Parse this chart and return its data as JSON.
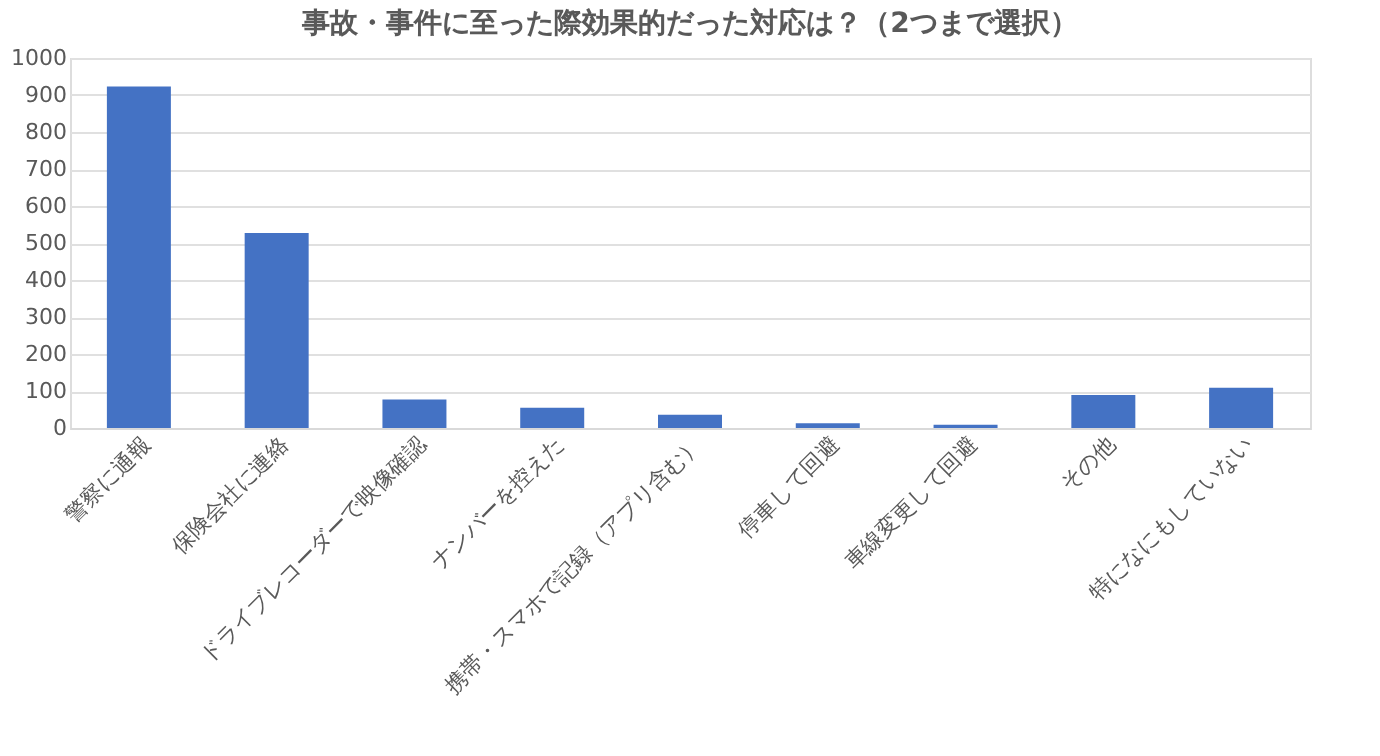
{
  "chart_data": {
    "type": "bar",
    "title": "事故・事件に至った際効果的だった対応は？（2つまで選択）",
    "categories": [
      "警察に通報",
      "保険会社に連絡",
      "ドライブレコーダーで映像確認",
      "ナンバーを控えた",
      "携帯・スマホで記録（アプリ含む）",
      "停車して回避",
      "車線変更して回避",
      "その他",
      "特になにもしていない"
    ],
    "values": [
      923,
      527,
      77,
      55,
      36,
      13,
      9,
      89,
      109
    ],
    "color": "#4472c4",
    "ylim": [
      0,
      1000
    ],
    "yticks": [
      0,
      100,
      200,
      300,
      400,
      500,
      600,
      700,
      800,
      900,
      1000
    ],
    "grid": "y"
  }
}
